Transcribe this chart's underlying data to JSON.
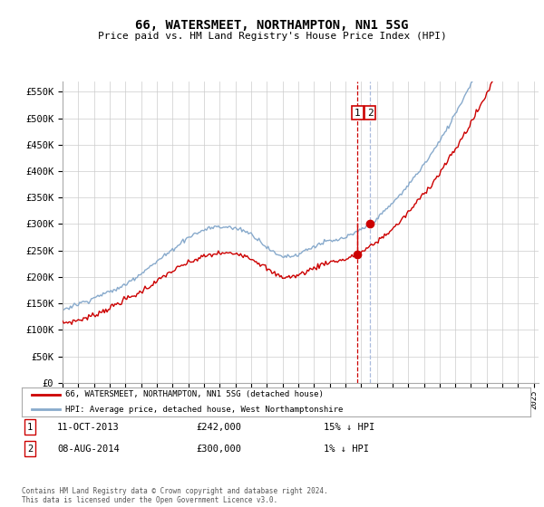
{
  "title": "66, WATERSMEET, NORTHAMPTON, NN1 5SG",
  "subtitle": "Price paid vs. HM Land Registry's House Price Index (HPI)",
  "ylim": [
    0,
    570000
  ],
  "xlim": [
    1995.0,
    2025.3
  ],
  "sale1_date": 2013.78,
  "sale1_price": 242000,
  "sale2_date": 2014.58,
  "sale2_price": 300000,
  "line_color_red": "#cc0000",
  "line_color_blue": "#88aacc",
  "dashed_color1": "#cc0000",
  "dashed_color2": "#aabbdd",
  "legend_text1": "66, WATERSMEET, NORTHAMPTON, NN1 5SG (detached house)",
  "legend_text2": "HPI: Average price, detached house, West Northamptonshire",
  "footer": "Contains HM Land Registry data © Crown copyright and database right 2024.\nThis data is licensed under the Open Government Licence v3.0.",
  "background_color": "#ffffff",
  "grid_color": "#cccccc"
}
